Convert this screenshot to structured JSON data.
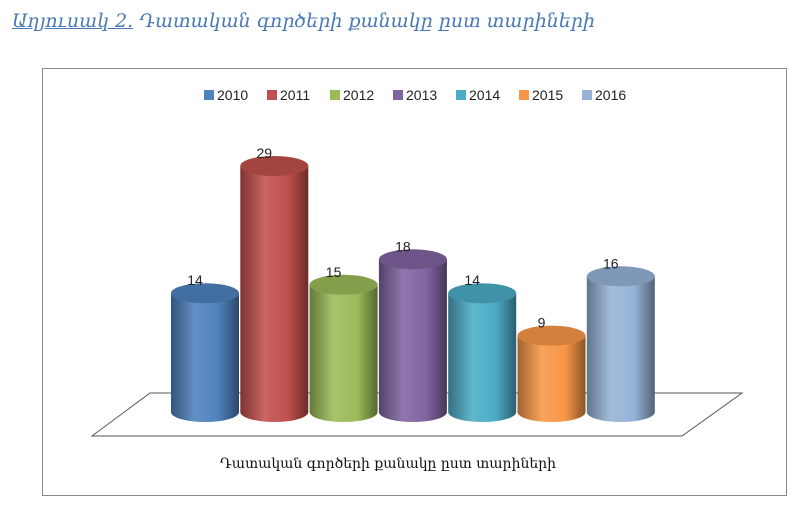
{
  "heading": {
    "lead": "Աղյուսակ 2.",
    "rest": " Դատական գործերի քանակը ըստ տարիների"
  },
  "chart_data": {
    "type": "bar",
    "style": "3d-cylinder",
    "title": "",
    "xlabel": "Դատական գործերի քանակը ըստ տարիների",
    "ylabel": "",
    "categories": [
      "Դատական գործերի քանակը ըստ տարիների"
    ],
    "series": [
      {
        "name": "2010",
        "values": [
          14
        ],
        "color": "#4f81bd"
      },
      {
        "name": "2011",
        "values": [
          29
        ],
        "color": "#c0504d"
      },
      {
        "name": "2012",
        "values": [
          15
        ],
        "color": "#9bbb59"
      },
      {
        "name": "2013",
        "values": [
          18
        ],
        "color": "#8064a2"
      },
      {
        "name": "2014",
        "values": [
          14
        ],
        "color": "#4bacc6"
      },
      {
        "name": "2015",
        "values": [
          9
        ],
        "color": "#f79646"
      },
      {
        "name": "2016",
        "values": [
          16
        ],
        "color": "#95b3d7"
      }
    ],
    "ylim": [
      0,
      30
    ],
    "legend_position": "top",
    "grid": false,
    "data_labels": true
  }
}
